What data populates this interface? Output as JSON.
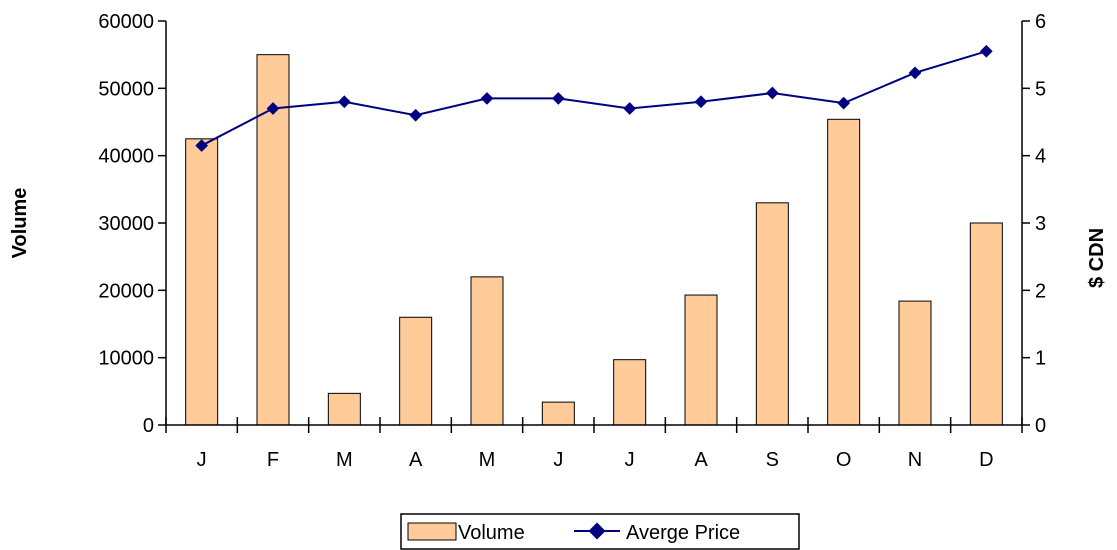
{
  "chart_data": {
    "type": "bar",
    "categories": [
      "J",
      "F",
      "M",
      "A",
      "M",
      "J",
      "J",
      "A",
      "S",
      "O",
      "N",
      "D"
    ],
    "series": [
      {
        "name": "Volume",
        "type": "bar",
        "axis": "left",
        "color": "#FFCC99",
        "values": [
          42500,
          55000,
          4700,
          16000,
          22000,
          3400,
          9700,
          19300,
          33000,
          45400,
          18400,
          30000
        ]
      },
      {
        "name": "Averge Price",
        "type": "line",
        "axis": "right",
        "color": "#000080",
        "values": [
          4.15,
          4.7,
          4.8,
          4.6,
          4.85,
          4.85,
          4.7,
          4.8,
          4.93,
          4.78,
          5.23,
          5.55
        ]
      }
    ],
    "ylabel": "Volume",
    "y2label": "$ CDN",
    "ylim": [
      0,
      60000
    ],
    "y2lim": [
      0,
      6
    ],
    "yticks": [
      "0",
      "10000",
      "20000",
      "30000",
      "40000",
      "50000",
      "60000"
    ],
    "y2ticks": [
      "0",
      "1",
      "2",
      "3",
      "4",
      "5",
      "6"
    ],
    "grid": false,
    "legend_position": "bottom"
  }
}
